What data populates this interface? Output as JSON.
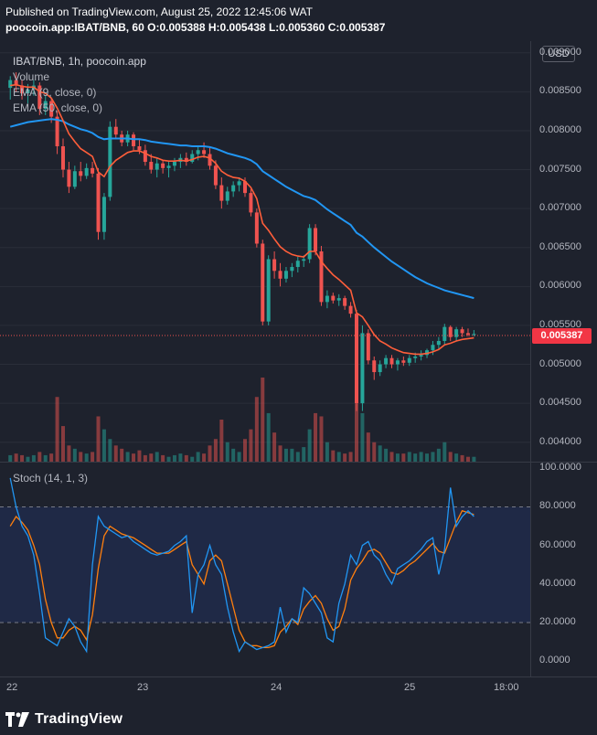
{
  "header": {
    "published": "Published on TradingView.com, August 25, 2022 12:45:06 WAT",
    "symbol_line": "poocoin.app:IBAT/BNB, 60",
    "ohlc": {
      "o_label": "O:",
      "o": "0.005388",
      "h_label": "H:",
      "h": "0.005438",
      "l_label": "L:",
      "l": "0.005360",
      "c_label": "C:",
      "c": "0.005387"
    }
  },
  "legend": {
    "title": "IBAT/BNB, 1h, poocoin.app",
    "volume": "Volume",
    "ema9": "EMA (9, close, 0)",
    "ema50": "EMA (50, close, 0)"
  },
  "currency_button": "USD",
  "last_price_label": "0.005387",
  "stoch_label": "Stoch (14, 1, 3)",
  "footer": {
    "brand": "TradingView"
  },
  "colors": {
    "up": "#26a69a",
    "down": "#ef5350",
    "ema9": "#ff5e3a",
    "ema50": "#2196f3",
    "stoch_k": "#2196f3",
    "stoch_d": "#ff7f0e",
    "bg": "#1e222d"
  },
  "chart_data": [
    {
      "type": "candlestick",
      "title": "IBAT/BNB, 1h, poocoin.app",
      "y_ticks": [
        "0.009000",
        "0.008500",
        "0.008000",
        "0.007500",
        "0.007000",
        "0.006500",
        "0.006000",
        "0.005500",
        "0.005000",
        "0.004500",
        "0.004000"
      ],
      "x_ticks": [
        "22",
        "23",
        "24",
        "25",
        "18:00"
      ],
      "ylim": [
        0.00375,
        0.00915
      ],
      "candles": [
        [
          0.00855,
          0.0087,
          0.0084,
          0.00865
        ],
        [
          0.00865,
          0.00875,
          0.0085,
          0.00858
        ],
        [
          0.00858,
          0.00865,
          0.0084,
          0.00848
        ],
        [
          0.00848,
          0.0086,
          0.00835,
          0.00853
        ],
        [
          0.00853,
          0.00865,
          0.00845,
          0.00858
        ],
        [
          0.00858,
          0.00862,
          0.0082,
          0.00828
        ],
        [
          0.00828,
          0.00845,
          0.0082,
          0.00838
        ],
        [
          0.00838,
          0.00842,
          0.0081,
          0.00818
        ],
        [
          0.00818,
          0.00825,
          0.0077,
          0.0078
        ],
        [
          0.0078,
          0.0079,
          0.0074,
          0.0075
        ],
        [
          0.0075,
          0.0076,
          0.0072,
          0.00728
        ],
        [
          0.00728,
          0.00755,
          0.00725,
          0.00748
        ],
        [
          0.00748,
          0.0076,
          0.00735,
          0.00742
        ],
        [
          0.00742,
          0.00758,
          0.00738,
          0.00752
        ],
        [
          0.00752,
          0.0076,
          0.0074,
          0.00745
        ],
        [
          0.00745,
          0.00752,
          0.0066,
          0.0067
        ],
        [
          0.0067,
          0.0072,
          0.0066,
          0.00715
        ],
        [
          0.00715,
          0.00812,
          0.0071,
          0.00805
        ],
        [
          0.00805,
          0.00815,
          0.0079,
          0.00795
        ],
        [
          0.00795,
          0.008,
          0.0078,
          0.00785
        ],
        [
          0.00785,
          0.008,
          0.0078,
          0.00795
        ],
        [
          0.00795,
          0.00798,
          0.00775,
          0.0078
        ],
        [
          0.0078,
          0.0079,
          0.0077,
          0.00775
        ],
        [
          0.00775,
          0.00782,
          0.00755,
          0.0076
        ],
        [
          0.0076,
          0.0077,
          0.00745,
          0.0075
        ],
        [
          0.0075,
          0.00765,
          0.0074,
          0.00758
        ],
        [
          0.00758,
          0.00762,
          0.00745,
          0.00752
        ],
        [
          0.00752,
          0.0076,
          0.0074,
          0.00755
        ],
        [
          0.00755,
          0.00765,
          0.00748,
          0.0076
        ],
        [
          0.0076,
          0.0077,
          0.00752,
          0.00765
        ],
        [
          0.00765,
          0.00772,
          0.00755,
          0.0076
        ],
        [
          0.0076,
          0.00775,
          0.00758,
          0.0077
        ],
        [
          0.0077,
          0.0078,
          0.00762,
          0.00775
        ],
        [
          0.00775,
          0.00785,
          0.00765,
          0.0077
        ],
        [
          0.0077,
          0.00778,
          0.0075,
          0.00755
        ],
        [
          0.00755,
          0.00762,
          0.00725,
          0.0073
        ],
        [
          0.0073,
          0.0074,
          0.007,
          0.0071
        ],
        [
          0.0071,
          0.00728,
          0.00705,
          0.00722
        ],
        [
          0.00722,
          0.00735,
          0.00715,
          0.0073
        ],
        [
          0.0073,
          0.0074,
          0.00722,
          0.00735
        ],
        [
          0.00735,
          0.0074,
          0.00715,
          0.0072
        ],
        [
          0.0072,
          0.00725,
          0.0069,
          0.00695
        ],
        [
          0.00695,
          0.007,
          0.0065,
          0.00655
        ],
        [
          0.00655,
          0.0066,
          0.0055,
          0.00555
        ],
        [
          0.00555,
          0.0064,
          0.0055,
          0.00635
        ],
        [
          0.00635,
          0.00645,
          0.0061,
          0.0062
        ],
        [
          0.0062,
          0.0063,
          0.006,
          0.0061
        ],
        [
          0.0061,
          0.00625,
          0.00605,
          0.0062
        ],
        [
          0.0062,
          0.0063,
          0.00612,
          0.00625
        ],
        [
          0.00625,
          0.00638,
          0.00618,
          0.00633
        ],
        [
          0.00633,
          0.0064,
          0.00625,
          0.00635
        ],
        [
          0.00635,
          0.0068,
          0.0063,
          0.00675
        ],
        [
          0.00675,
          0.0068,
          0.0064,
          0.00645
        ],
        [
          0.00645,
          0.00652,
          0.00575,
          0.0058
        ],
        [
          0.0058,
          0.00595,
          0.00572,
          0.00588
        ],
        [
          0.00588,
          0.00592,
          0.00578,
          0.00582
        ],
        [
          0.00582,
          0.0059,
          0.00575,
          0.00585
        ],
        [
          0.00585,
          0.00588,
          0.0057,
          0.00575
        ],
        [
          0.00575,
          0.0058,
          0.0056,
          0.00565
        ],
        [
          0.00565,
          0.0057,
          0.0044,
          0.0045
        ],
        [
          0.0045,
          0.0055,
          0.0044,
          0.0054
        ],
        [
          0.0054,
          0.00545,
          0.005,
          0.00505
        ],
        [
          0.00505,
          0.0051,
          0.0048,
          0.0049
        ],
        [
          0.0049,
          0.00505,
          0.00485,
          0.005
        ],
        [
          0.005,
          0.00512,
          0.00495,
          0.00508
        ],
        [
          0.00508,
          0.00512,
          0.00495,
          0.005
        ],
        [
          0.005,
          0.00508,
          0.00492,
          0.00505
        ],
        [
          0.00505,
          0.0051,
          0.00498,
          0.00502
        ],
        [
          0.00502,
          0.00512,
          0.00498,
          0.00508
        ],
        [
          0.00508,
          0.00515,
          0.00502,
          0.0051
        ],
        [
          0.0051,
          0.00518,
          0.00505,
          0.00512
        ],
        [
          0.00512,
          0.0052,
          0.00508,
          0.00518
        ],
        [
          0.00518,
          0.0053,
          0.00512,
          0.00525
        ],
        [
          0.00525,
          0.00535,
          0.0052,
          0.0053
        ],
        [
          0.0053,
          0.00552,
          0.00525,
          0.00548
        ],
        [
          0.00548,
          0.0055,
          0.0053,
          0.00535
        ],
        [
          0.00535,
          0.00548,
          0.0053,
          0.00545
        ],
        [
          0.00545,
          0.00548,
          0.00535,
          0.0054
        ],
        [
          0.0054,
          0.00546,
          0.00536,
          0.00538
        ],
        [
          0.00538,
          0.00544,
          0.00536,
          0.00539
        ]
      ],
      "volume": [
        4,
        5,
        4,
        3,
        4,
        6,
        4,
        5,
        40,
        22,
        10,
        8,
        6,
        5,
        6,
        28,
        20,
        14,
        10,
        8,
        6,
        5,
        7,
        4,
        5,
        6,
        4,
        3,
        4,
        5,
        4,
        3,
        6,
        5,
        10,
        14,
        26,
        12,
        8,
        6,
        14,
        20,
        40,
        52,
        30,
        18,
        10,
        8,
        8,
        6,
        9,
        20,
        30,
        28,
        12,
        7,
        6,
        5,
        6,
        36,
        30,
        18,
        12,
        10,
        8,
        6,
        5,
        5,
        6,
        5,
        6,
        5,
        6,
        8,
        12,
        6,
        5,
        4,
        3,
        3
      ],
      "ema9": [
        0.00858,
        0.00859,
        0.00857,
        0.00856,
        0.00856,
        0.0085,
        0.00848,
        0.00842,
        0.00829,
        0.00813,
        0.00796,
        0.00786,
        0.00777,
        0.00772,
        0.00767,
        0.00747,
        0.00741,
        0.00754,
        0.00762,
        0.00767,
        0.00772,
        0.00774,
        0.00774,
        0.00771,
        0.00767,
        0.00765,
        0.00762,
        0.00761,
        0.00761,
        0.00762,
        0.00761,
        0.00763,
        0.00766,
        0.00767,
        0.00765,
        0.00758,
        0.00748,
        0.00743,
        0.0074,
        0.00739,
        0.00735,
        0.00727,
        0.00713,
        0.00681,
        0.00672,
        0.00661,
        0.00651,
        0.00645,
        0.00641,
        0.00639,
        0.00638,
        0.00645,
        0.00645,
        0.00632,
        0.00623,
        0.00615,
        0.00609,
        0.00602,
        0.00595,
        0.00566,
        0.00561,
        0.0055,
        0.00538,
        0.0053,
        0.00526,
        0.00521,
        0.00518,
        0.00515,
        0.00514,
        0.00513,
        0.00513,
        0.00514,
        0.00516,
        0.00519,
        0.00525,
        0.00527,
        0.0053,
        0.00532,
        0.00533,
        0.00534
      ],
      "ema50": [
        0.00805,
        0.00807,
        0.00809,
        0.00811,
        0.00812,
        0.00813,
        0.00814,
        0.00815,
        0.00814,
        0.00812,
        0.00808,
        0.00805,
        0.00802,
        0.008,
        0.00797,
        0.00792,
        0.00789,
        0.0079,
        0.0079,
        0.0079,
        0.0079,
        0.00789,
        0.00789,
        0.00788,
        0.00786,
        0.00785,
        0.00784,
        0.00783,
        0.00782,
        0.00781,
        0.00781,
        0.0078,
        0.0078,
        0.0078,
        0.00779,
        0.00777,
        0.00774,
        0.00771,
        0.00769,
        0.00767,
        0.00765,
        0.00762,
        0.00757,
        0.00748,
        0.00743,
        0.00738,
        0.00733,
        0.00728,
        0.00724,
        0.0072,
        0.00716,
        0.00714,
        0.00711,
        0.00705,
        0.00699,
        0.00694,
        0.00689,
        0.00684,
        0.00679,
        0.00669,
        0.00664,
        0.00657,
        0.0065,
        0.00644,
        0.00638,
        0.00632,
        0.00627,
        0.00622,
        0.00617,
        0.00612,
        0.00608,
        0.00604,
        0.00601,
        0.00598,
        0.00595,
        0.00593,
        0.00591,
        0.00589,
        0.00587,
        0.00585
      ]
    },
    {
      "type": "line",
      "title": "Stoch (14, 1, 3)",
      "y_ticks": [
        "100.0000",
        "80.0000",
        "60.0000",
        "40.0000",
        "20.0000",
        "0.0000"
      ],
      "ylim": [
        -8,
        103
      ],
      "bands": [
        20,
        80
      ],
      "series": [
        {
          "name": "%K",
          "values": [
            95,
            80,
            70,
            65,
            55,
            35,
            12,
            10,
            8,
            15,
            22,
            18,
            10,
            5,
            50,
            75,
            70,
            68,
            66,
            64,
            65,
            62,
            60,
            58,
            56,
            55,
            56,
            57,
            60,
            62,
            65,
            25,
            45,
            50,
            60,
            50,
            45,
            28,
            15,
            5,
            10,
            8,
            6,
            7,
            8,
            10,
            28,
            15,
            22,
            20,
            38,
            35,
            30,
            25,
            12,
            10,
            30,
            40,
            55,
            50,
            60,
            62,
            55,
            52,
            45,
            40,
            48,
            50,
            52,
            55,
            58,
            62,
            64,
            45,
            58,
            90,
            70,
            75,
            78,
            75
          ]
        },
        {
          "name": "%D",
          "values": [
            70,
            75,
            72,
            68,
            60,
            50,
            32,
            20,
            12,
            12,
            16,
            18,
            16,
            11,
            24,
            48,
            65,
            70,
            68,
            66,
            65,
            64,
            62,
            60,
            58,
            56,
            56,
            56,
            58,
            60,
            62,
            50,
            45,
            40,
            52,
            55,
            52,
            40,
            28,
            16,
            10,
            8,
            8,
            7,
            7,
            8,
            15,
            18,
            22,
            19,
            27,
            31,
            34,
            30,
            22,
            16,
            18,
            27,
            42,
            48,
            52,
            57,
            58,
            56,
            51,
            46,
            45,
            47,
            50,
            52,
            55,
            58,
            61,
            57,
            56,
            64,
            72,
            78,
            77,
            76
          ]
        }
      ]
    }
  ]
}
